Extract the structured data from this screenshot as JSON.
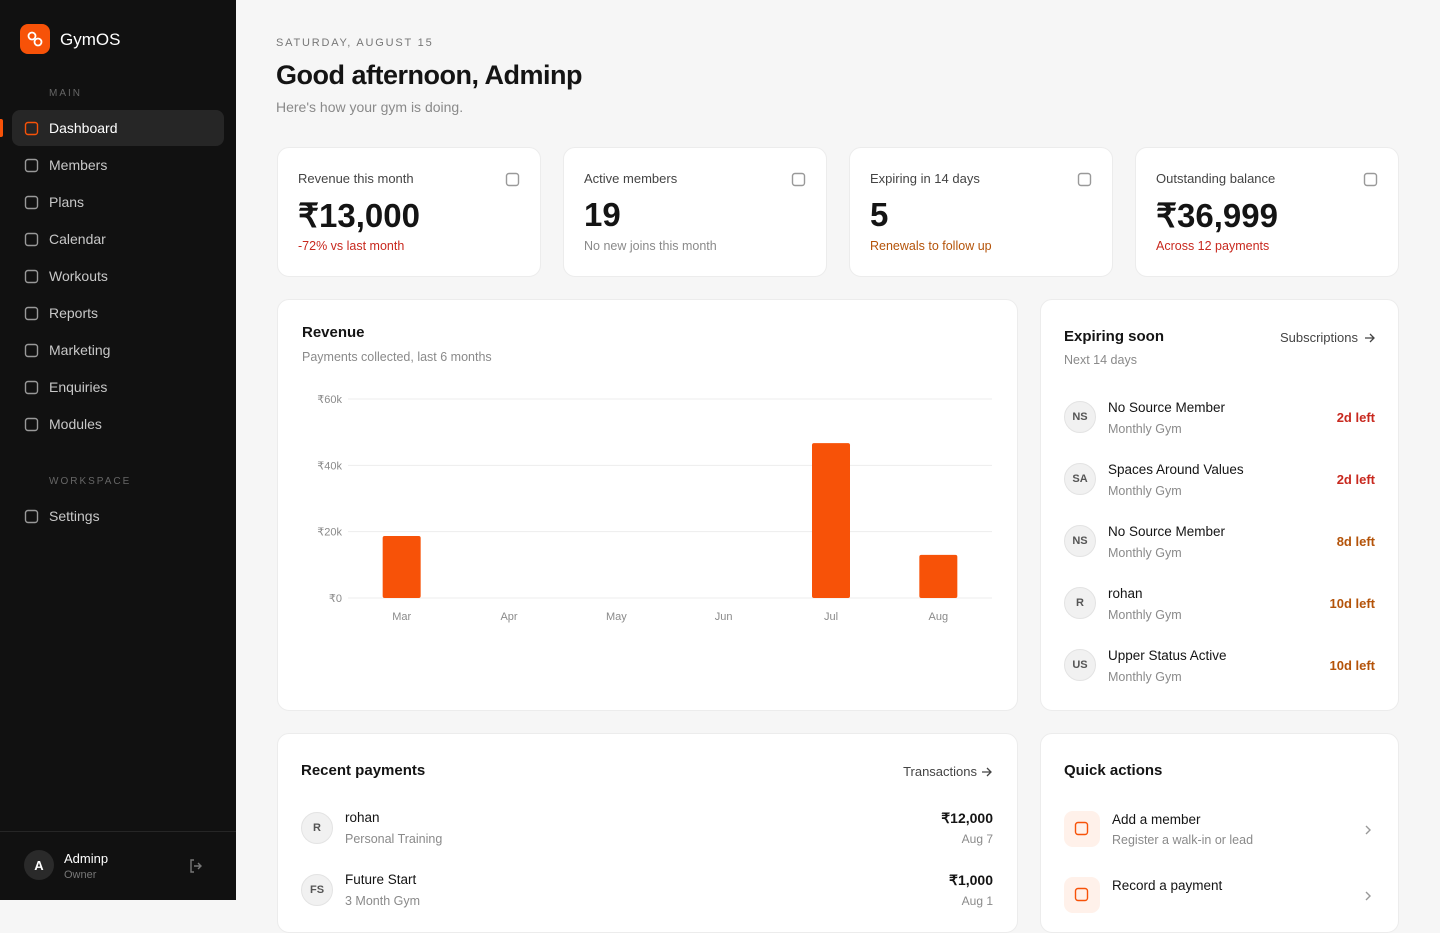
{
  "sidebar": {
    "brand": "GymOS",
    "sections": [
      {
        "title": "MAIN",
        "items": [
          "Dashboard",
          "Members",
          "Plans",
          "Calendar",
          "Workouts",
          "Reports",
          "Marketing",
          "Enquiries",
          "Modules"
        ]
      },
      {
        "title": "WORKSPACE",
        "items": [
          "Settings"
        ]
      }
    ],
    "user": {
      "initial": "A",
      "name": "Adminp",
      "role": "Owner"
    }
  },
  "header": {
    "date": "SATURDAY, AUGUST 15",
    "title": "Good afternoon, Adminp",
    "subtitle": "Here's how your gym is doing."
  },
  "stats": [
    {
      "label": "Revenue this month",
      "value": "₹13,000",
      "note": "-72% vs last month",
      "note_color": "#c8281e"
    },
    {
      "label": "Active members",
      "value": "19",
      "note": "No new joins this month",
      "note_color": "#8a8a8a"
    },
    {
      "label": "Expiring in 14 days",
      "value": "5",
      "note": "Renewals to follow up",
      "note_color": "#b45309"
    },
    {
      "label": "Outstanding balance",
      "value": "₹36,999",
      "note": "Across 12 payments",
      "note_color": "#c8281e"
    }
  ],
  "chart_data": {
    "type": "bar",
    "title": "Revenue",
    "subtitle": "Payments collected, last 6 months",
    "categories": [
      "Mar",
      "Apr",
      "May",
      "Jun",
      "Jul",
      "Aug"
    ],
    "values": [
      18700,
      0,
      0,
      0,
      46700,
      13000
    ],
    "color": "#f75208",
    "ylim": [
      0,
      60000
    ],
    "yticks": [
      {
        "value": 0,
        "label": "₹0"
      },
      {
        "value": 20000,
        "label": "₹20k"
      },
      {
        "value": 40000,
        "label": "₹40k"
      },
      {
        "value": 60000,
        "label": "₹60k"
      }
    ],
    "grid": true
  },
  "expiring": {
    "title": "Expiring soon",
    "link": "Subscriptions",
    "subtitle": "Next 14 days",
    "items": [
      {
        "initials": "NS",
        "name": "No Source Member",
        "plan": "Monthly Gym",
        "left": "2d left",
        "color": "#c8281e"
      },
      {
        "initials": "SA",
        "name": "Spaces Around Values",
        "plan": "Monthly Gym",
        "left": "2d left",
        "color": "#c8281e"
      },
      {
        "initials": "NS",
        "name": "No Source Member",
        "plan": "Monthly Gym",
        "left": "8d left",
        "color": "#b45309"
      },
      {
        "initials": "R",
        "name": "rohan",
        "plan": "Monthly Gym",
        "left": "10d left",
        "color": "#b45309"
      },
      {
        "initials": "US",
        "name": "Upper Status Active",
        "plan": "Monthly Gym",
        "left": "10d left",
        "color": "#b45309"
      }
    ]
  },
  "payments": {
    "title": "Recent payments",
    "link": "Transactions",
    "items": [
      {
        "initials": "R",
        "name": "rohan",
        "plan": "Personal Training",
        "amount": "₹12,000",
        "date": "Aug 7"
      },
      {
        "initials": "FS",
        "name": "Future Start",
        "plan": "3 Month Gym",
        "amount": "₹1,000",
        "date": "Aug 1"
      }
    ]
  },
  "quick_actions": {
    "title": "Quick actions",
    "items": [
      {
        "title": "Add a member",
        "description": "Register a walk-in or lead"
      },
      {
        "title": "Record a payment"
      }
    ]
  }
}
